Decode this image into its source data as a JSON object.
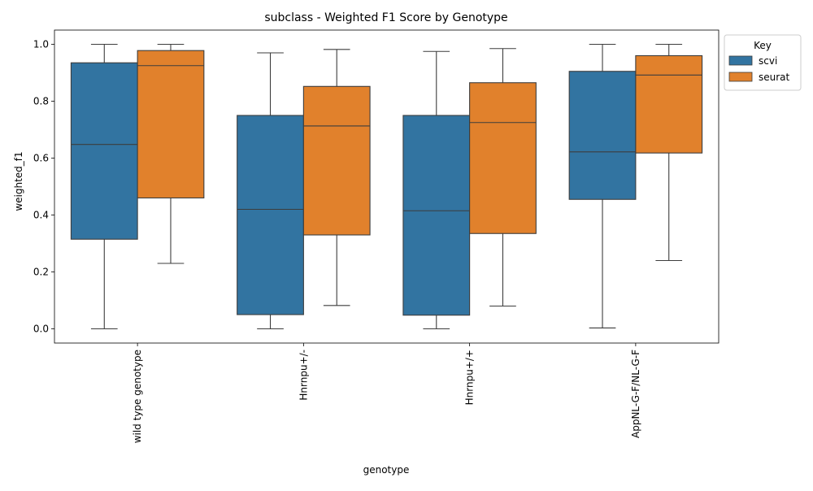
{
  "chart_data": {
    "type": "boxplot",
    "title": "subclass - Weighted F1 Score by Genotype",
    "xlabel": "genotype",
    "ylabel": "weighted_f1",
    "ylim": [
      -0.05,
      1.05
    ],
    "yticks": [
      0.0,
      0.2,
      0.4,
      0.6,
      0.8,
      1.0
    ],
    "ytick_labels": [
      "0.0",
      "0.2",
      "0.4",
      "0.6",
      "0.8",
      "1.0"
    ],
    "categories": [
      "wild type genotype",
      "Hnrnpu+/-",
      "Hnrnpu+/+",
      "AppNL-G-F/NL-G-F"
    ],
    "legend": {
      "title": "Key",
      "position": "outside-top-right"
    },
    "grid": false,
    "series": [
      {
        "name": "scvi",
        "color": "#3274a1",
        "boxes": [
          {
            "whisker_low": 0.0,
            "q1": 0.315,
            "median": 0.648,
            "q3": 0.935,
            "whisker_high": 1.0
          },
          {
            "whisker_low": 0.0,
            "q1": 0.05,
            "median": 0.42,
            "q3": 0.75,
            "whisker_high": 0.97
          },
          {
            "whisker_low": 0.0,
            "q1": 0.048,
            "median": 0.415,
            "q3": 0.75,
            "whisker_high": 0.975
          },
          {
            "whisker_low": 0.003,
            "q1": 0.455,
            "median": 0.622,
            "q3": 0.905,
            "whisker_high": 1.0
          }
        ]
      },
      {
        "name": "seurat",
        "color": "#e1812c",
        "boxes": [
          {
            "whisker_low": 0.23,
            "q1": 0.46,
            "median": 0.925,
            "q3": 0.978,
            "whisker_high": 1.0
          },
          {
            "whisker_low": 0.082,
            "q1": 0.33,
            "median": 0.713,
            "q3": 0.852,
            "whisker_high": 0.982
          },
          {
            "whisker_low": 0.08,
            "q1": 0.335,
            "median": 0.725,
            "q3": 0.865,
            "whisker_high": 0.985
          },
          {
            "whisker_low": 0.24,
            "q1": 0.618,
            "median": 0.892,
            "q3": 0.96,
            "whisker_high": 1.0
          }
        ]
      }
    ]
  }
}
